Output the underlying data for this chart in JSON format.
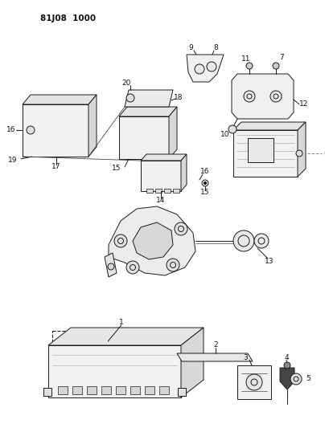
{
  "title_code": "81J08 1000",
  "bg_color": "#ffffff",
  "line_color": "#1a1a1a",
  "fig_width": 4.04,
  "fig_height": 5.33,
  "dpi": 100
}
